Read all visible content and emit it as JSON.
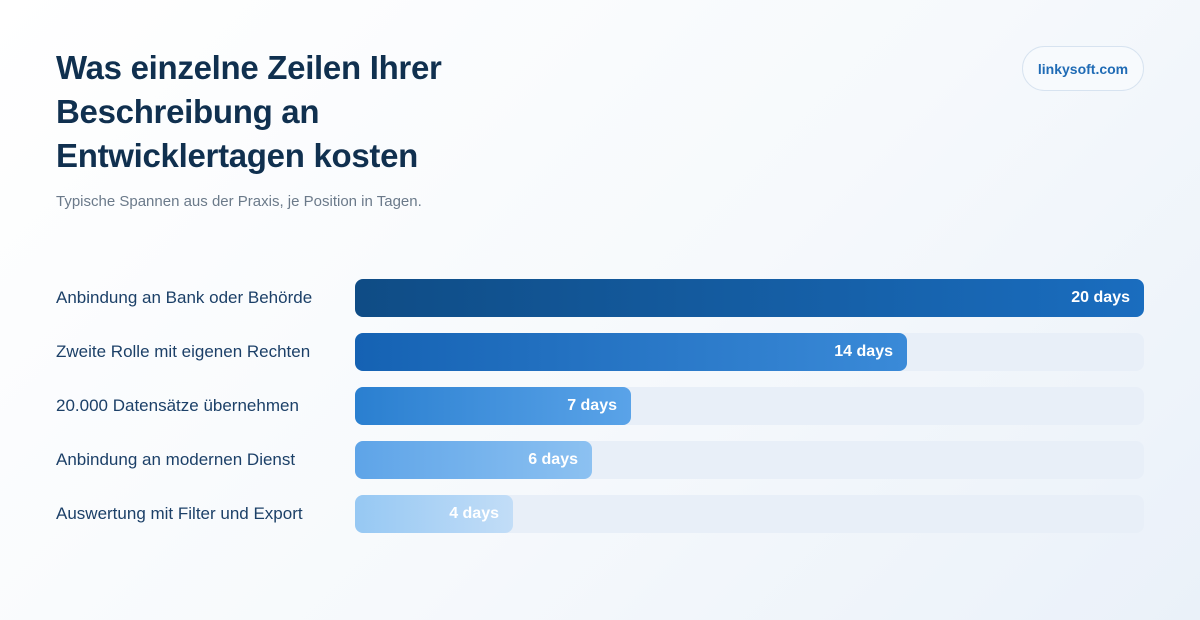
{
  "header": {
    "title": "Was einzelne Zeilen Ihrer Beschreibung an Entwicklertagen kosten",
    "subtitle": "Typische Spannen aus der Praxis, je Position in Tagen.",
    "brand": "linkysoft.com"
  },
  "chart_data": {
    "type": "bar",
    "orientation": "horizontal",
    "title": "Was einzelne Zeilen Ihrer Beschreibung an Entwicklertagen kosten",
    "subtitle": "Typische Spannen aus der Praxis, je Position in Tagen.",
    "xlim": [
      0,
      20
    ],
    "grid": false,
    "legend": "none",
    "categories": [
      "Anbindung an Bank oder Behörde",
      "Zweite Rolle mit eigenen Rechten",
      "20.000 Datensätze übernehmen",
      "Anbindung an modernen Dienst",
      "Auswertung mit Filter und Export"
    ],
    "values": [
      20,
      14,
      7,
      6,
      4
    ],
    "value_labels": [
      "20 days",
      "14 days",
      "7 days",
      "6 days",
      "4 days"
    ],
    "bar_gradients": [
      [
        "#0f4c85",
        "#1a6dbf"
      ],
      [
        "#1562b3",
        "#3a8ad8"
      ],
      [
        "#2a7fd0",
        "#5aa3e8"
      ],
      [
        "#5ea4e8",
        "#8cc1f1"
      ],
      [
        "#96c8f3",
        "#c2ddf7"
      ]
    ],
    "track_color": "#e8eff8"
  }
}
